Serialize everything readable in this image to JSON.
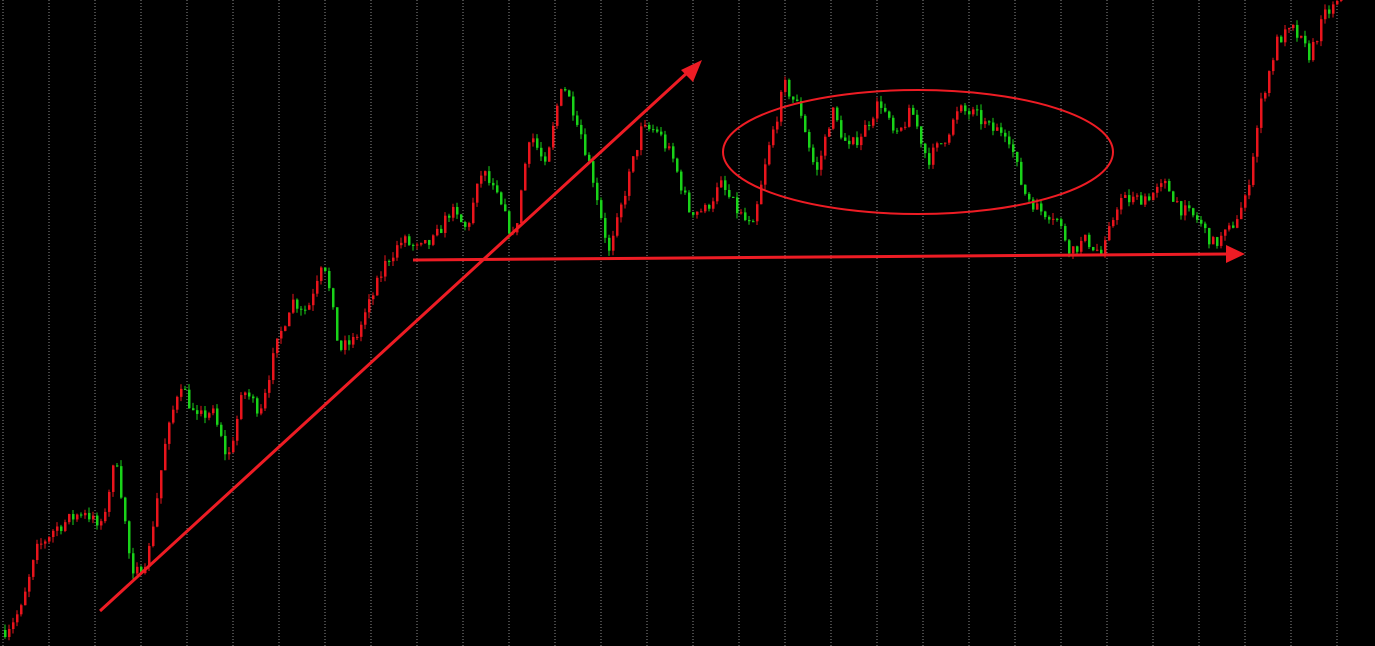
{
  "chart_data": {
    "type": "candlestick",
    "title": "",
    "xlabel": "",
    "ylabel": "",
    "grid": "vertical dotted",
    "legend": "none",
    "ylim": [
      54,
      700
    ],
    "closes": [
      70,
      90,
      150,
      170,
      180,
      190,
      170,
      245,
      120,
      145,
      250,
      320,
      280,
      290,
      240,
      310,
      290,
      350,
      400,
      390,
      445,
      350,
      360,
      400,
      440,
      460,
      450,
      460,
      490,
      470,
      530,
      500,
      460,
      570,
      530,
      620,
      580,
      520,
      445,
      510,
      570,
      570,
      540,
      490,
      490,
      515,
      490,
      470,
      550,
      615,
      590,
      525,
      590,
      550,
      570,
      600,
      560,
      590,
      540,
      560,
      590,
      585,
      570,
      570,
      510,
      490,
      485,
      450,
      460,
      445,
      500,
      500,
      505,
      515,
      490,
      480,
      455,
      470,
      500,
      600,
      660,
      670,
      645,
      685,
      700
    ],
    "annotations": [
      {
        "type": "trend-arrow"
      },
      {
        "type": "horizontal-support-arrow"
      },
      {
        "type": "consolidation-ellipse"
      }
    ],
    "colors": {
      "background": "#000000",
      "up_candle": "#e8141c",
      "down_candle": "#19d219",
      "grid": "#8c8c8c",
      "annotation": "#ee1c24"
    }
  }
}
